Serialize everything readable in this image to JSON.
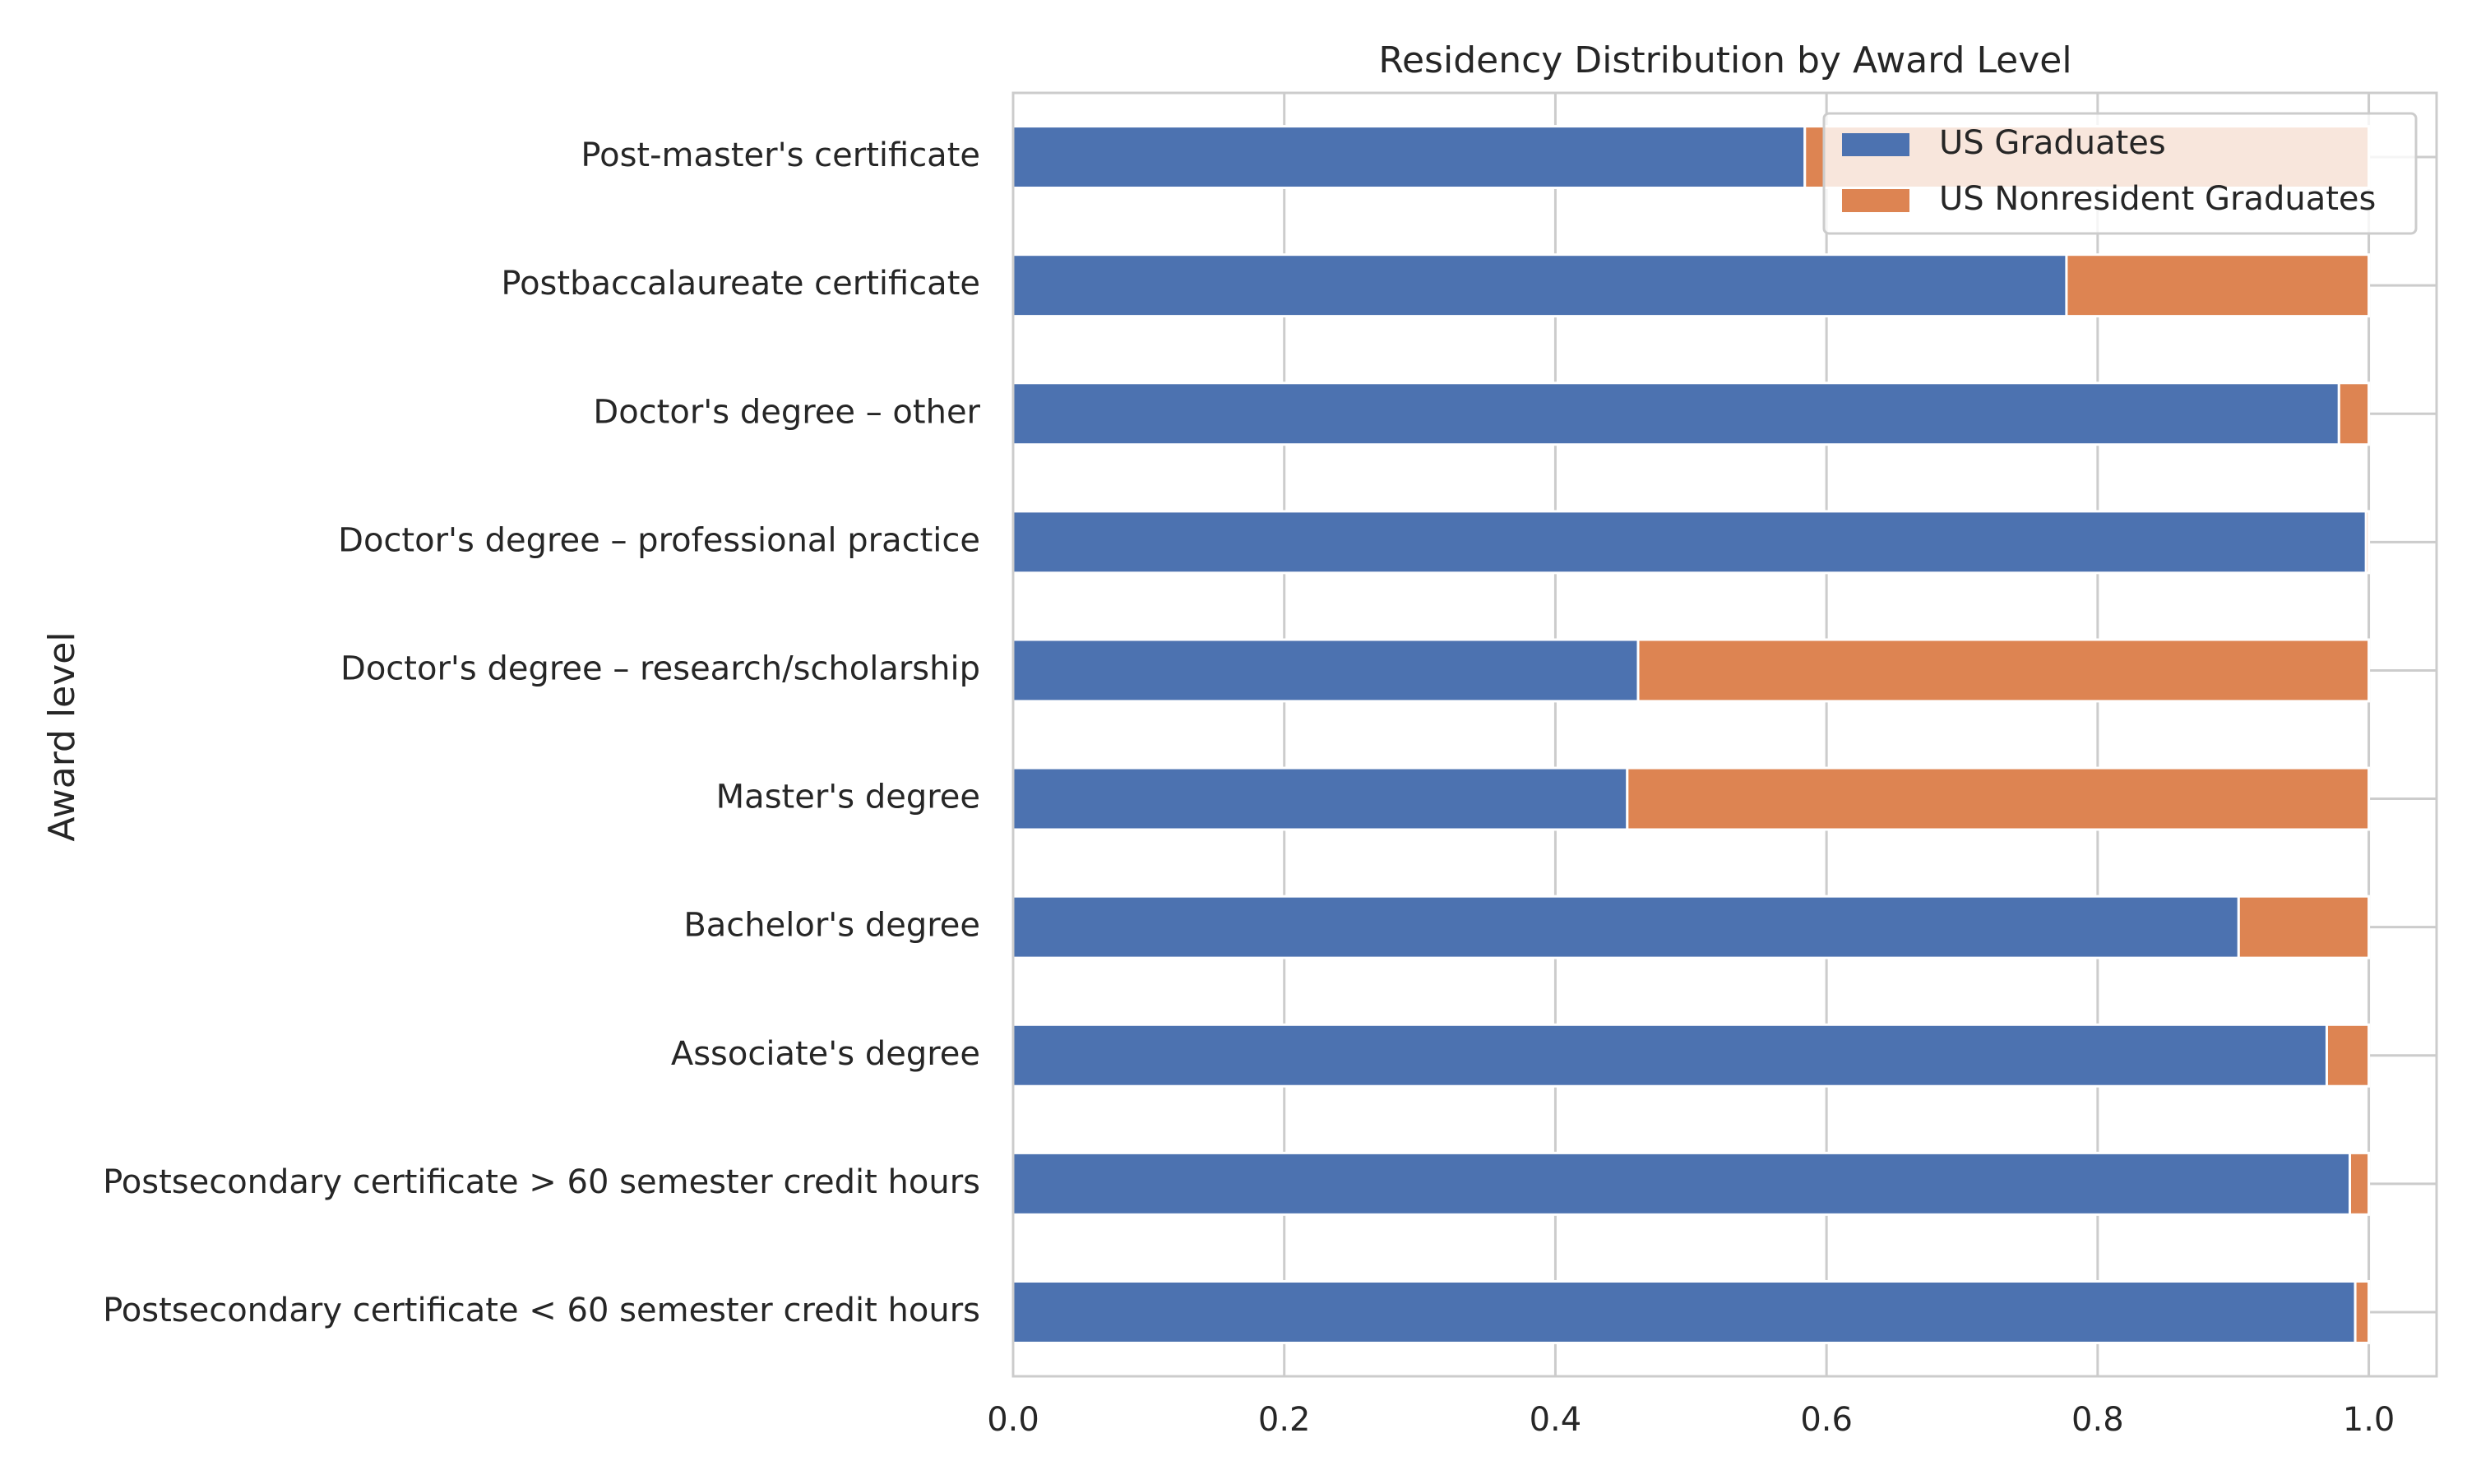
{
  "chart_data": {
    "type": "bar",
    "orientation": "horizontal",
    "stacked": true,
    "title": "Residency Distribution by Award Level",
    "xlabel": "",
    "ylabel": "Award level",
    "xlim": [
      0,
      1.05
    ],
    "xticks": [
      "0.0",
      "0.2",
      "0.4",
      "0.6",
      "0.8",
      "1.0"
    ],
    "grid": true,
    "legend_position": "top-right",
    "categories": [
      "Post-master's certificate",
      "Postbaccalaureate certificate",
      "Doctor's degree – other",
      "Doctor's degree – professional practice",
      "Doctor's degree – research/scholarship",
      "Master's degree",
      "Bachelor's degree",
      "Associate's degree",
      "Postsecondary certificate > 60 semester credit hours",
      "Postsecondary certificate < 60 semester credit hours"
    ],
    "series": [
      {
        "name": "US Graduates",
        "color": "#4c72b0",
        "values": [
          0.584,
          0.777,
          0.978,
          0.998,
          0.461,
          0.453,
          0.904,
          0.969,
          0.986,
          0.99
        ]
      },
      {
        "name": "US Nonresident Graduates",
        "color": "#dd8452",
        "values": [
          0.416,
          0.223,
          0.022,
          0.002,
          0.539,
          0.547,
          0.096,
          0.031,
          0.014,
          0.01
        ]
      }
    ]
  }
}
